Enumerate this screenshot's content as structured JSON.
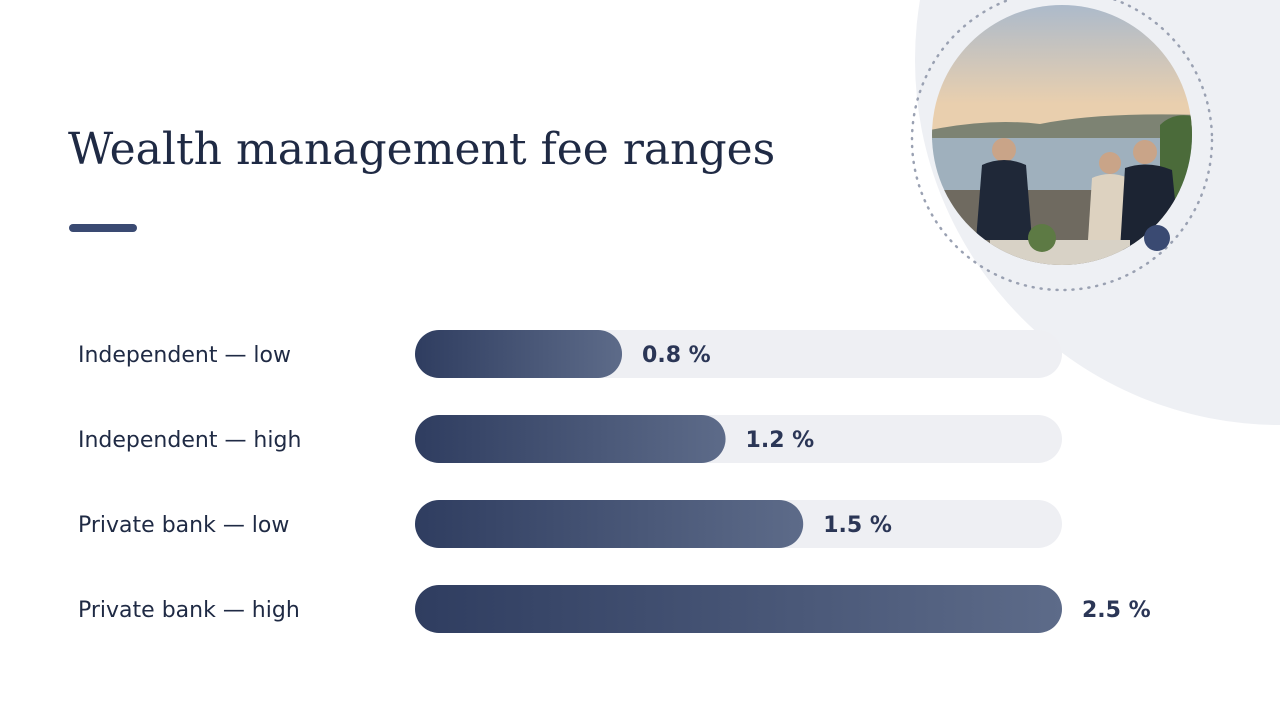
{
  "chart_data": {
    "type": "bar",
    "orientation": "horizontal",
    "title": "Wealth management fee ranges",
    "categories": [
      "Independent — low",
      "Independent — high",
      "Private bank — low",
      "Private bank — high"
    ],
    "values": [
      0.8,
      1.2,
      1.5,
      2.5
    ],
    "value_labels": [
      "0.8 %",
      "1.2 %",
      "1.5 %",
      "2.5 %"
    ],
    "color": "#2f3d60",
    "xlim": [
      0,
      2.5
    ]
  }
}
